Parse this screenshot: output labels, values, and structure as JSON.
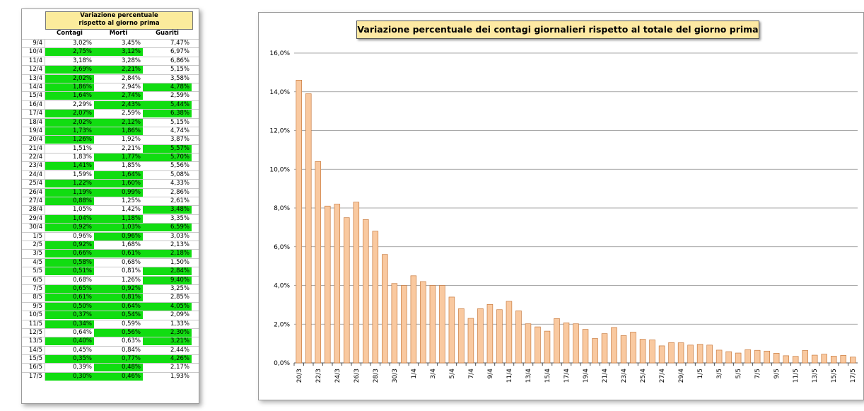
{
  "table": {
    "title_line1": "Variazione percentuale",
    "title_line2": "rispetto al giorno prima",
    "headers": [
      "Contagi",
      "Morti",
      "Guariti"
    ],
    "rows": [
      {
        "date": "9/4",
        "contagi": "3,02%",
        "morti": "3,45%",
        "guariti": "7,47%",
        "hl": [
          false,
          false,
          false
        ]
      },
      {
        "date": "10/4",
        "contagi": "2,75%",
        "morti": "3,12%",
        "guariti": "6,97%",
        "hl": [
          true,
          true,
          false
        ]
      },
      {
        "date": "11/4",
        "contagi": "3,18%",
        "morti": "3,28%",
        "guariti": "6,86%",
        "hl": [
          false,
          false,
          false
        ]
      },
      {
        "date": "12/4",
        "contagi": "2,69%",
        "morti": "2,21%",
        "guariti": "5,15%",
        "hl": [
          true,
          true,
          false
        ]
      },
      {
        "date": "13/4",
        "contagi": "2,02%",
        "morti": "2,84%",
        "guariti": "3,58%",
        "hl": [
          true,
          false,
          false
        ]
      },
      {
        "date": "14/4",
        "contagi": "1,86%",
        "morti": "2,94%",
        "guariti": "4,78%",
        "hl": [
          true,
          false,
          true
        ]
      },
      {
        "date": "15/4",
        "contagi": "1,64%",
        "morti": "2,74%",
        "guariti": "2,59%",
        "hl": [
          true,
          true,
          false
        ]
      },
      {
        "date": "16/4",
        "contagi": "2,29%",
        "morti": "2,43%",
        "guariti": "5,44%",
        "hl": [
          false,
          true,
          true
        ]
      },
      {
        "date": "17/4",
        "contagi": "2,07%",
        "morti": "2,59%",
        "guariti": "6,38%",
        "hl": [
          true,
          false,
          true
        ]
      },
      {
        "date": "18/4",
        "contagi": "2,02%",
        "morti": "2,12%",
        "guariti": "5,15%",
        "hl": [
          true,
          true,
          false
        ]
      },
      {
        "date": "19/4",
        "contagi": "1,73%",
        "morti": "1,86%",
        "guariti": "4,74%",
        "hl": [
          true,
          true,
          false
        ]
      },
      {
        "date": "20/4",
        "contagi": "1,26%",
        "morti": "1,92%",
        "guariti": "3,87%",
        "hl": [
          true,
          false,
          false
        ]
      },
      {
        "date": "21/4",
        "contagi": "1,51%",
        "morti": "2,21%",
        "guariti": "5,57%",
        "hl": [
          false,
          false,
          true
        ]
      },
      {
        "date": "22/4",
        "contagi": "1,83%",
        "morti": "1,77%",
        "guariti": "5,70%",
        "hl": [
          false,
          true,
          true
        ]
      },
      {
        "date": "23/4",
        "contagi": "1,41%",
        "morti": "1,85%",
        "guariti": "5,56%",
        "hl": [
          true,
          false,
          false
        ]
      },
      {
        "date": "24/4",
        "contagi": "1,59%",
        "morti": "1,64%",
        "guariti": "5,08%",
        "hl": [
          false,
          true,
          false
        ]
      },
      {
        "date": "25/4",
        "contagi": "1,22%",
        "morti": "1,60%",
        "guariti": "4,33%",
        "hl": [
          true,
          true,
          false
        ]
      },
      {
        "date": "26/4",
        "contagi": "1,19%",
        "morti": "0,99%",
        "guariti": "2,86%",
        "hl": [
          true,
          true,
          false
        ]
      },
      {
        "date": "27/4",
        "contagi": "0,88%",
        "morti": "1,25%",
        "guariti": "2,61%",
        "hl": [
          true,
          false,
          false
        ]
      },
      {
        "date": "28/4",
        "contagi": "1,05%",
        "morti": "1,42%",
        "guariti": "3,48%",
        "hl": [
          false,
          false,
          true
        ]
      },
      {
        "date": "29/4",
        "contagi": "1,04%",
        "morti": "1,18%",
        "guariti": "3,35%",
        "hl": [
          true,
          true,
          false
        ]
      },
      {
        "date": "30/4",
        "contagi": "0,92%",
        "morti": "1,03%",
        "guariti": "6,59%",
        "hl": [
          true,
          true,
          true
        ]
      },
      {
        "date": "1/5",
        "contagi": "0,96%",
        "morti": "0,96%",
        "guariti": "3,03%",
        "hl": [
          false,
          true,
          false
        ]
      },
      {
        "date": "2/5",
        "contagi": "0,92%",
        "morti": "1,68%",
        "guariti": "2,13%",
        "hl": [
          true,
          false,
          false
        ]
      },
      {
        "date": "3/5",
        "contagi": "0,66%",
        "morti": "0,61%",
        "guariti": "2,18%",
        "hl": [
          true,
          true,
          true
        ]
      },
      {
        "date": "4/5",
        "contagi": "0,58%",
        "morti": "0,68%",
        "guariti": "1,50%",
        "hl": [
          true,
          false,
          false
        ]
      },
      {
        "date": "5/5",
        "contagi": "0,51%",
        "morti": "0,81%",
        "guariti": "2,84%",
        "hl": [
          true,
          false,
          true
        ]
      },
      {
        "date": "6/5",
        "contagi": "0,68%",
        "morti": "1,26%",
        "guariti": "9,40%",
        "hl": [
          false,
          false,
          true
        ]
      },
      {
        "date": "7/5",
        "contagi": "0,65%",
        "morti": "0,92%",
        "guariti": "3,25%",
        "hl": [
          true,
          true,
          false
        ]
      },
      {
        "date": "8/5",
        "contagi": "0,61%",
        "morti": "0,81%",
        "guariti": "2,85%",
        "hl": [
          true,
          true,
          false
        ]
      },
      {
        "date": "9/5",
        "contagi": "0,50%",
        "morti": "0,64%",
        "guariti": "4,05%",
        "hl": [
          true,
          true,
          true
        ]
      },
      {
        "date": "10/5",
        "contagi": "0,37%",
        "morti": "0,54%",
        "guariti": "2,09%",
        "hl": [
          true,
          true,
          false
        ]
      },
      {
        "date": "11/5",
        "contagi": "0,34%",
        "morti": "0,59%",
        "guariti": "1,33%",
        "hl": [
          true,
          false,
          false
        ]
      },
      {
        "date": "12/5",
        "contagi": "0,64%",
        "morti": "0,56%",
        "guariti": "2,30%",
        "hl": [
          false,
          true,
          true
        ]
      },
      {
        "date": "13/5",
        "contagi": "0,40%",
        "morti": "0,63%",
        "guariti": "3,21%",
        "hl": [
          true,
          false,
          true
        ]
      },
      {
        "date": "14/5",
        "contagi": "0,45%",
        "morti": "0,84%",
        "guariti": "2,44%",
        "hl": [
          false,
          false,
          false
        ]
      },
      {
        "date": "15/5",
        "contagi": "0,35%",
        "morti": "0,77%",
        "guariti": "4,26%",
        "hl": [
          true,
          true,
          true
        ]
      },
      {
        "date": "16/5",
        "contagi": "0,39%",
        "morti": "0,48%",
        "guariti": "2,17%",
        "hl": [
          false,
          true,
          false
        ]
      },
      {
        "date": "17/5",
        "contagi": "0,30%",
        "morti": "0,46%",
        "guariti": "1,93%",
        "hl": [
          true,
          true,
          false
        ]
      }
    ]
  },
  "colors": {
    "highlight": "#11dd11",
    "bar_fill": "#f9c9a0",
    "bar_stroke": "#c87a3e",
    "title_bg": "#fde9a3",
    "grid": "#8c8c8c"
  },
  "chart_data": {
    "type": "bar",
    "title": "Variazione percentuale dei contagi giornalieri rispetto al totale del giorno prima",
    "xlabel": "",
    "ylabel": "",
    "ylim": [
      0,
      16
    ],
    "yticks": [
      "0,0%",
      "2,0%",
      "4,0%",
      "6,0%",
      "8,0%",
      "10,0%",
      "12,0%",
      "14,0%",
      "16,0%"
    ],
    "grid": true,
    "legend": "none",
    "categories": [
      "20/3",
      "21/3",
      "22/3",
      "23/3",
      "24/3",
      "25/3",
      "26/3",
      "27/3",
      "28/3",
      "29/3",
      "30/3",
      "31/3",
      "1/4",
      "2/4",
      "3/4",
      "4/4",
      "5/4",
      "6/4",
      "7/4",
      "8/4",
      "9/4",
      "10/4",
      "11/4",
      "12/4",
      "13/4",
      "14/4",
      "15/4",
      "16/4",
      "17/4",
      "18/4",
      "19/4",
      "20/4",
      "21/4",
      "22/4",
      "23/4",
      "24/4",
      "25/4",
      "26/4",
      "27/4",
      "28/4",
      "29/4",
      "30/4",
      "1/5",
      "2/5",
      "3/5",
      "4/5",
      "5/5",
      "6/5",
      "7/5",
      "8/5",
      "9/5",
      "10/5",
      "11/5",
      "12/5",
      "13/5",
      "14/5",
      "15/5",
      "16/5",
      "17/5"
    ],
    "tick_labels": [
      "20/3",
      "22/3",
      "24/3",
      "26/3",
      "28/3",
      "30/3",
      "1/4",
      "3/4",
      "5/4",
      "7/4",
      "9/4",
      "11/4",
      "13/4",
      "15/4",
      "17/4",
      "19/4",
      "21/4",
      "23/4",
      "25/4",
      "27/4",
      "29/4",
      "1/5",
      "3/5",
      "5/5",
      "7/5",
      "9/5",
      "11/5",
      "13/5",
      "15/5",
      "17/5"
    ],
    "values": [
      14.6,
      13.9,
      10.4,
      8.1,
      8.2,
      7.5,
      8.3,
      7.4,
      6.8,
      5.6,
      4.1,
      4.0,
      4.5,
      4.2,
      4.0,
      4.0,
      3.4,
      2.8,
      2.3,
      2.8,
      3.02,
      2.75,
      3.18,
      2.69,
      2.02,
      1.86,
      1.64,
      2.29,
      2.07,
      2.02,
      1.73,
      1.26,
      1.51,
      1.83,
      1.41,
      1.59,
      1.22,
      1.19,
      0.88,
      1.05,
      1.04,
      0.92,
      0.96,
      0.92,
      0.66,
      0.58,
      0.51,
      0.68,
      0.65,
      0.61,
      0.5,
      0.37,
      0.34,
      0.64,
      0.4,
      0.45,
      0.35,
      0.39,
      0.3
    ]
  }
}
